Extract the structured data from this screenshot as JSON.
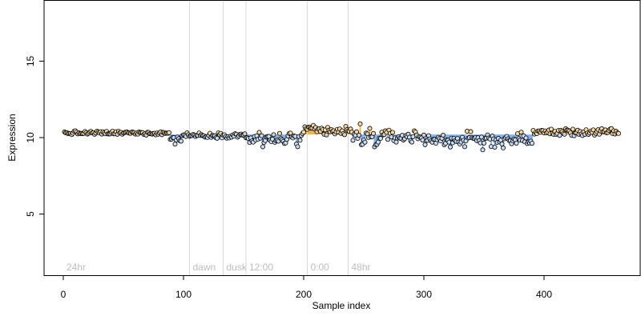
{
  "colors": {
    "background": "#ffffff",
    "axis": "#000000",
    "guide_line": "#d9d9d9",
    "guide_label": "#bdbdbd",
    "band_high": "#f2b14c",
    "band_low": "#86b0e0",
    "band_mid": "#808080",
    "point_stroke": "#000000"
  },
  "chart_data": {
    "type": "scatter",
    "title": "",
    "xlabel": "Sample index",
    "ylabel": "Expression",
    "xlim": [
      -16,
      480
    ],
    "ylim": [
      1,
      19
    ],
    "x_ticks": [
      0,
      100,
      200,
      300,
      400
    ],
    "y_ticks": [
      5,
      10,
      15
    ],
    "grid": false,
    "legend": "none",
    "n_points": 462,
    "baseline": 10.2,
    "guides": [
      {
        "x": 0,
        "label": "24hr",
        "line": false
      },
      {
        "x": 105,
        "label": "dawn",
        "line": true
      },
      {
        "x": 133,
        "label": "dusk",
        "line": true
      },
      {
        "x": 152,
        "label": "12:00",
        "line": true
      },
      {
        "x": 203,
        "label": "0:00",
        "line": true
      },
      {
        "x": 237,
        "label": "48hr",
        "line": true
      }
    ],
    "segments": [
      {
        "from": 1,
        "to": 88,
        "level": 10.3,
        "noise": 0.08
      },
      {
        "from": 89,
        "to": 98,
        "level": 9.9,
        "noise": 0.18
      },
      {
        "from": 99,
        "to": 152,
        "level": 10.15,
        "noise": 0.1
      },
      {
        "from": 153,
        "to": 198,
        "level": 9.9,
        "noise": 0.3
      },
      {
        "from": 199,
        "to": 240,
        "level": 10.4,
        "noise": 0.22
      },
      {
        "from": 241,
        "to": 263,
        "level": 9.95,
        "noise": 0.35
      },
      {
        "from": 264,
        "to": 300,
        "level": 10.05,
        "noise": 0.25
      },
      {
        "from": 301,
        "to": 390,
        "level": 9.85,
        "noise": 0.28
      },
      {
        "from": 391,
        "to": 462,
        "level": 10.35,
        "noise": 0.15
      }
    ],
    "spikes": [
      {
        "x": 247,
        "y": 10.9
      },
      {
        "x": 255,
        "y": 10.6
      },
      {
        "x": 349,
        "y": 9.2
      },
      {
        "x": 259,
        "y": 9.4
      },
      {
        "x": 166,
        "y": 9.4
      },
      {
        "x": 208,
        "y": 10.8
      }
    ]
  }
}
